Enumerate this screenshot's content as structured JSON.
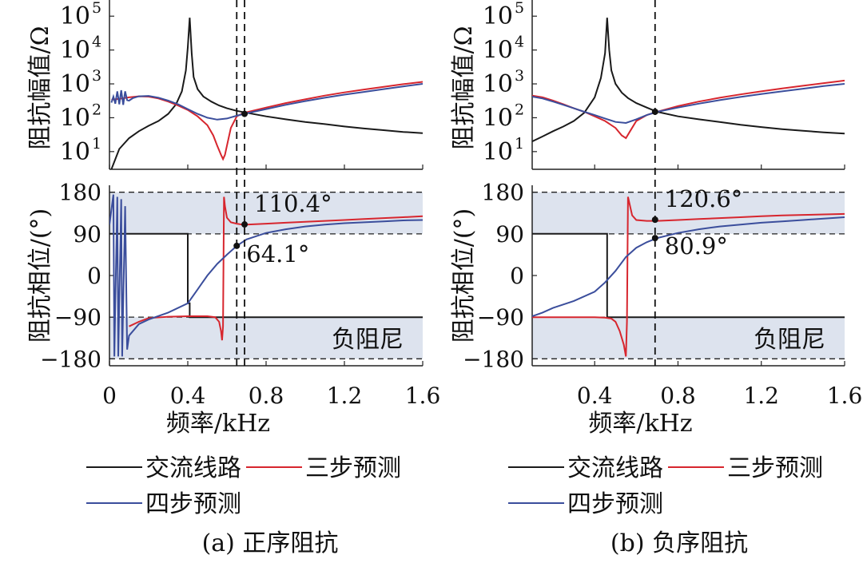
{
  "colors": {
    "ac_line": "#1a1a1a",
    "three_step": "#d7262e",
    "four_step": "#3b4e9c",
    "negative_damping_band": "#dde3ee"
  },
  "legend": {
    "ac_line": "交流线路",
    "three_step": "三步预测",
    "four_step": "四步预测"
  },
  "chart_data": [
    {
      "type": "line",
      "caption": "(a) 正序阻抗",
      "xlabel": "频率/kHz",
      "x_ticks": [
        "0",
        "0.4",
        "0.8",
        "1.2",
        "1.6"
      ],
      "x_tick_values": [
        0,
        0.4,
        0.8,
        1.2,
        1.6
      ],
      "xlim": [
        0,
        1.6
      ],
      "magnitude": {
        "ylabel": "阻抗幅值/Ω",
        "scale": "log",
        "ylim": [
          3,
          300000
        ],
        "y_ticks": [
          {
            "base": "10",
            "exp": "1",
            "value": 10
          },
          {
            "base": "10",
            "exp": "2",
            "value": 100
          },
          {
            "base": "10",
            "exp": "3",
            "value": 1000
          },
          {
            "base": "10",
            "exp": "4",
            "value": 10000
          },
          {
            "base": "10",
            "exp": "5",
            "value": 100000
          }
        ],
        "series": [
          {
            "key": "ac_line",
            "x": [
              0.01,
              0.05,
              0.1,
              0.15,
              0.2,
              0.25,
              0.3,
              0.34,
              0.37,
              0.39,
              0.4,
              0.41,
              0.42,
              0.43,
              0.45,
              0.48,
              0.52,
              0.56,
              0.6,
              0.65,
              0.7,
              0.8,
              0.9,
              1.0,
              1.1,
              1.2,
              1.3,
              1.4,
              1.5,
              1.6
            ],
            "y": [
              3,
              12,
              25,
              40,
              58,
              80,
              130,
              250,
              600,
              2500,
              12000,
              90000,
              8000,
              1600,
              700,
              420,
              300,
              230,
              190,
              160,
              140,
              110,
              90,
              75,
              65,
              55,
              48,
              43,
              38,
              35
            ]
          },
          {
            "key": "three_step",
            "x": [
              0.01,
              0.05,
              0.1,
              0.15,
              0.2,
              0.25,
              0.3,
              0.35,
              0.4,
              0.45,
              0.5,
              0.53,
              0.55,
              0.57,
              0.58,
              0.59,
              0.6,
              0.62,
              0.65,
              0.68,
              0.7,
              0.8,
              0.9,
              1.0,
              1.1,
              1.2,
              1.3,
              1.4,
              1.5,
              1.6
            ],
            "y": [
              340,
              360,
              400,
              430,
              420,
              370,
              300,
              230,
              170,
              110,
              60,
              30,
              15,
              8,
              6,
              8,
              15,
              50,
              110,
              135,
              145,
              200,
              270,
              350,
              450,
              560,
              680,
              820,
              980,
              1150
            ]
          },
          {
            "key": "four_step",
            "x": [
              0.01,
              0.02,
              0.03,
              0.04,
              0.05,
              0.06,
              0.07,
              0.08,
              0.09,
              0.1,
              0.12,
              0.15,
              0.2,
              0.25,
              0.3,
              0.35,
              0.4,
              0.45,
              0.5,
              0.55,
              0.6,
              0.65,
              0.7,
              0.8,
              0.9,
              1.0,
              1.1,
              1.2,
              1.3,
              1.4,
              1.5,
              1.6
            ],
            "y": [
              280,
              420,
              260,
              600,
              250,
              650,
              240,
              600,
              330,
              320,
              380,
              430,
              440,
              390,
              320,
              250,
              180,
              130,
              100,
              88,
              95,
              115,
              135,
              180,
              240,
              310,
              390,
              480,
              580,
              700,
              840,
              1000
            ]
          }
        ]
      },
      "phase": {
        "ylabel": "阻抗相位/(°)",
        "ylim": [
          -195,
          195
        ],
        "y_ticks": [
          "−180",
          "−90",
          "0",
          "90",
          "180"
        ],
        "y_tick_values": [
          -180,
          -90,
          0,
          90,
          180
        ],
        "band_label": "负阻尼",
        "series": [
          {
            "key": "ac_line",
            "x": [
              0,
              0.4,
              0.4,
              0.41,
              0.41,
              1.6
            ],
            "y": [
              90,
              90,
              -60,
              -60,
              -90,
              -90
            ]
          },
          {
            "key": "three_step",
            "x": [
              0.1,
              0.15,
              0.2,
              0.3,
              0.4,
              0.45,
              0.5,
              0.54,
              0.56,
              0.57,
              0.575,
              0.58,
              0.585,
              0.59,
              0.6,
              0.62,
              0.65,
              0.68,
              0.7,
              0.8,
              0.9,
              1.0,
              1.1,
              1.2,
              1.3,
              1.4,
              1.5,
              1.6
            ],
            "y": [
              -110,
              -100,
              -92,
              -89,
              -88,
              -88,
              -88,
              -90,
              -100,
              -120,
              -140,
              -110,
              170,
              150,
              125,
              115,
              112,
              110,
              110,
              112,
              114,
              116,
              118,
              120,
              122,
              124,
              126,
              128
            ]
          },
          {
            "key": "four_step",
            "x": [
              0,
              0.02,
              0.025,
              0.04,
              0.045,
              0.06,
              0.065,
              0.08,
              0.09,
              0.1,
              0.15,
              0.2,
              0.3,
              0.4,
              0.45,
              0.5,
              0.55,
              0.6,
              0.65,
              0.7,
              0.8,
              0.9,
              1.0,
              1.1,
              1.2,
              1.3,
              1.4,
              1.5,
              1.6
            ],
            "y": [
              110,
              175,
              -175,
              170,
              -175,
              165,
              -175,
              150,
              -160,
              -130,
              -105,
              -95,
              -80,
              -60,
              -30,
              0,
              25,
              45,
              64,
              78,
              92,
              100,
              106,
              110,
              113,
              115,
              117,
              119,
              120
            ]
          }
        ]
      },
      "vlines": [
        0.65,
        0.69
      ],
      "markers": [
        {
          "panel": "magnitude",
          "x": 0.69,
          "y": 130
        },
        {
          "panel": "phase",
          "x": 0.69,
          "y": 110.4
        },
        {
          "panel": "phase",
          "x": 0.65,
          "y": 64.1
        }
      ],
      "annotations": [
        {
          "text": "110.4°",
          "x": 0.69,
          "y": 110.4
        },
        {
          "text": "64.1°",
          "x": 0.65,
          "y": 64.1
        }
      ]
    },
    {
      "type": "line",
      "caption": "(b) 负序阻抗",
      "xlabel": "频率/kHz",
      "x_ticks": [
        "0.4",
        "0.8",
        "1.2",
        "1.6"
      ],
      "x_tick_values": [
        0.4,
        0.8,
        1.2,
        1.6
      ],
      "xlim": [
        0.1,
        1.6
      ],
      "magnitude": {
        "ylabel": "阻抗幅值/Ω",
        "scale": "log",
        "ylim": [
          3,
          300000
        ],
        "y_ticks": [
          {
            "base": "10",
            "exp": "1",
            "value": 10
          },
          {
            "base": "10",
            "exp": "2",
            "value": 100
          },
          {
            "base": "10",
            "exp": "3",
            "value": 1000
          },
          {
            "base": "10",
            "exp": "4",
            "value": 10000
          },
          {
            "base": "10",
            "exp": "5",
            "value": 100000
          }
        ],
        "series": [
          {
            "key": "ac_line",
            "x": [
              0.1,
              0.15,
              0.2,
              0.25,
              0.3,
              0.35,
              0.4,
              0.43,
              0.45,
              0.46,
              0.47,
              0.48,
              0.5,
              0.53,
              0.56,
              0.6,
              0.65,
              0.7,
              0.8,
              0.9,
              1.0,
              1.1,
              1.2,
              1.3,
              1.4,
              1.5,
              1.6
            ],
            "y": [
              20,
              28,
              40,
              55,
              80,
              140,
              400,
              1500,
              8000,
              90000,
              10000,
              2500,
              1000,
              550,
              380,
              270,
              200,
              150,
              110,
              90,
              75,
              62,
              53,
              46,
              41,
              37,
              34
            ]
          },
          {
            "key": "three_step",
            "x": [
              0.1,
              0.15,
              0.2,
              0.25,
              0.3,
              0.35,
              0.4,
              0.45,
              0.5,
              0.53,
              0.55,
              0.57,
              0.6,
              0.65,
              0.7,
              0.8,
              0.9,
              1.0,
              1.1,
              1.2,
              1.3,
              1.4,
              1.5,
              1.6
            ],
            "y": [
              450,
              400,
              320,
              250,
              190,
              150,
              110,
              80,
              50,
              30,
              25,
              40,
              80,
              120,
              150,
              220,
              300,
              390,
              490,
              600,
              730,
              880,
              1050,
              1250
            ]
          },
          {
            "key": "four_step",
            "x": [
              0.1,
              0.15,
              0.2,
              0.25,
              0.3,
              0.35,
              0.4,
              0.45,
              0.5,
              0.55,
              0.6,
              0.65,
              0.7,
              0.8,
              0.9,
              1.0,
              1.1,
              1.2,
              1.3,
              1.4,
              1.5,
              1.6
            ],
            "y": [
              420,
              370,
              300,
              240,
              190,
              150,
              120,
              95,
              75,
              70,
              90,
              120,
              150,
              200,
              260,
              330,
              410,
              500,
              600,
              720,
              860,
              1000
            ]
          }
        ]
      },
      "phase": {
        "ylabel": "阻抗相位/(°)",
        "ylim": [
          -195,
          195
        ],
        "y_ticks": [
          "−180",
          "−90",
          "0",
          "90",
          "180"
        ],
        "y_tick_values": [
          -180,
          -90,
          0,
          90,
          180
        ],
        "band_label": "负阻尼",
        "series": [
          {
            "key": "ac_line",
            "x": [
              0.1,
              0.46,
              0.46,
              1.6
            ],
            "y": [
              90,
              90,
              -90,
              -90
            ]
          },
          {
            "key": "three_step",
            "x": [
              0.1,
              0.2,
              0.3,
              0.4,
              0.45,
              0.48,
              0.5,
              0.52,
              0.54,
              0.55,
              0.555,
              0.56,
              0.58,
              0.6,
              0.65,
              0.7,
              0.8,
              0.9,
              1.0,
              1.1,
              1.2,
              1.3,
              1.4,
              1.5,
              1.6
            ],
            "y": [
              -90,
              -90,
              -90,
              -90,
              -91,
              -93,
              -100,
              -120,
              -150,
              -175,
              -100,
              170,
              130,
              120,
              118,
              118,
              120,
              122,
              124,
              126,
              128,
              130,
              131,
              132,
              133
            ]
          },
          {
            "key": "four_step",
            "x": [
              0.1,
              0.15,
              0.2,
              0.3,
              0.4,
              0.45,
              0.5,
              0.55,
              0.6,
              0.65,
              0.7,
              0.8,
              0.9,
              1.0,
              1.1,
              1.2,
              1.3,
              1.4,
              1.5,
              1.6
            ],
            "y": [
              -88,
              -80,
              -70,
              -55,
              -35,
              -15,
              10,
              40,
              60,
              72,
              81,
              92,
              100,
              106,
              110,
              114,
              117,
              120,
              123,
              126
            ]
          }
        ]
      },
      "vlines": [
        0.69
      ],
      "markers": [
        {
          "panel": "magnitude",
          "x": 0.69,
          "y": 150
        },
        {
          "panel": "phase",
          "x": 0.69,
          "y": 120.6
        },
        {
          "panel": "phase",
          "x": 0.69,
          "y": 80.9
        }
      ],
      "annotations": [
        {
          "text": "120.6°",
          "x": 0.69,
          "y": 120.6
        },
        {
          "text": "80.9°",
          "x": 0.69,
          "y": 80.9
        }
      ]
    }
  ]
}
